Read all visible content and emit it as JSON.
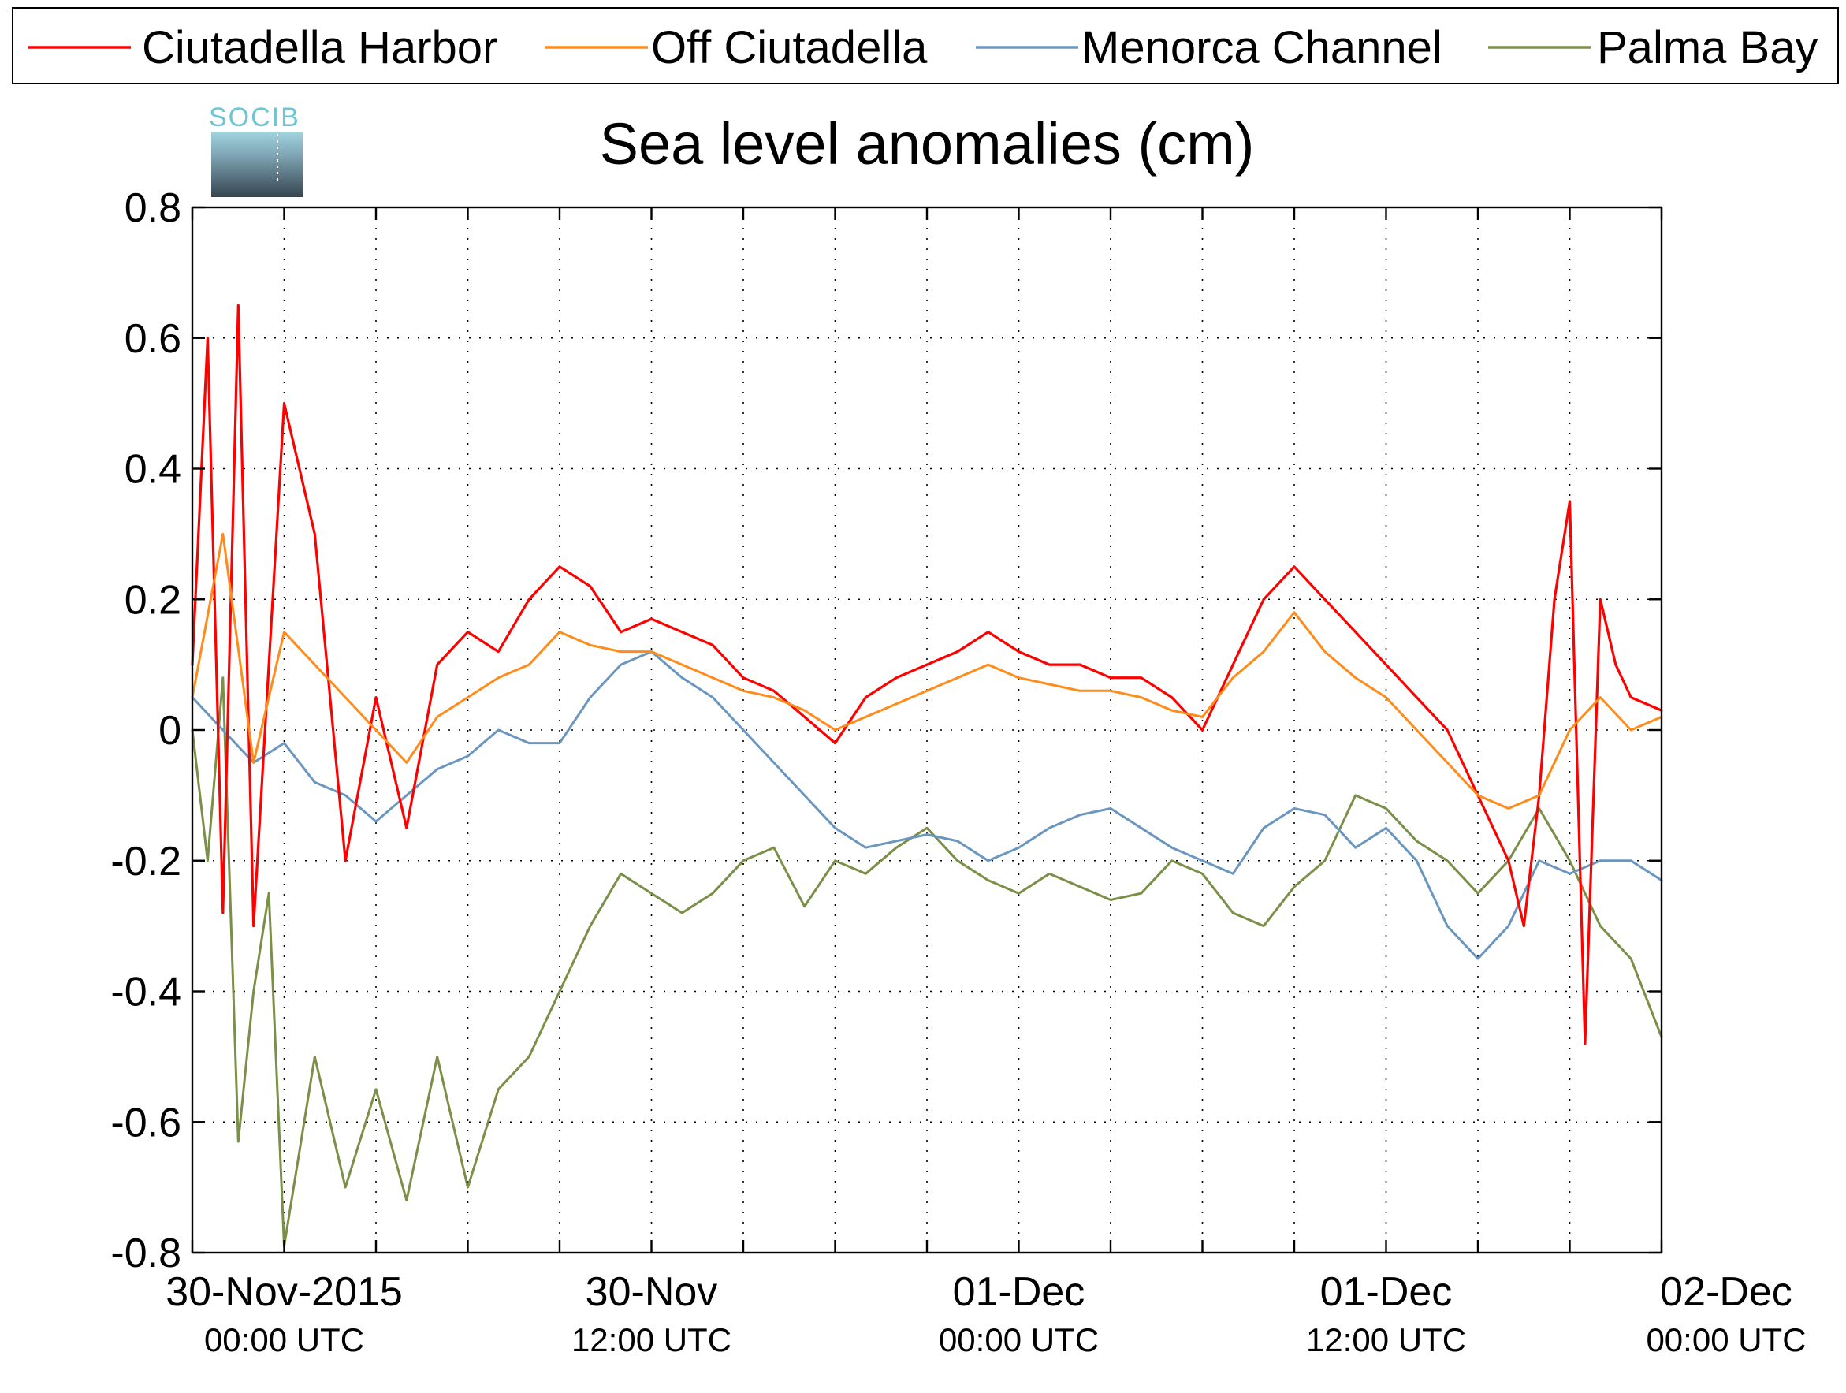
{
  "chart_data": {
    "type": "line",
    "title": "Sea level anomalies (cm)",
    "logo_text": "SOCIB",
    "xlabel": "",
    "ylabel": "",
    "ylim": [
      -0.8,
      0.8
    ],
    "yticks": [
      "0.8",
      "0.6",
      "0.4",
      "0.2",
      "0",
      "-0.2",
      "-0.4",
      "-0.6",
      "-0.8"
    ],
    "xlim_hours": [
      -3,
      45
    ],
    "grid": true,
    "legend_placement": "top",
    "xticks": [
      {
        "hour": 0,
        "main": "30-Nov-2015",
        "sub": "00:00 UTC"
      },
      {
        "hour": 12,
        "main": "30-Nov",
        "sub": "12:00 UTC"
      },
      {
        "hour": 24,
        "main": "01-Dec",
        "sub": "00:00 UTC"
      },
      {
        "hour": 36,
        "main": "01-Dec",
        "sub": "12:00 UTC"
      },
      {
        "hour": 48,
        "main": "02-Dec",
        "sub": "00:00 UTC"
      }
    ],
    "series": [
      {
        "name": "Ciutadella Harbor",
        "color": "#ff0000",
        "x": [
          -3,
          -2.5,
          -2,
          -1.5,
          -1,
          0,
          1,
          2,
          3,
          4,
          5,
          6,
          7,
          8,
          9,
          10,
          11,
          12,
          13,
          14,
          15,
          16,
          17,
          18,
          19,
          20,
          21,
          22,
          23,
          24,
          25,
          26,
          27,
          28,
          29,
          30,
          31,
          32,
          33,
          34,
          35,
          36,
          37,
          38,
          39,
          40,
          40.5,
          41,
          41.5,
          42,
          42.5,
          43,
          43.5,
          44,
          45
        ],
        "y": [
          0.1,
          0.6,
          -0.28,
          0.65,
          -0.3,
          0.5,
          0.3,
          -0.2,
          0.05,
          -0.15,
          0.1,
          0.15,
          0.12,
          0.2,
          0.25,
          0.22,
          0.15,
          0.17,
          0.15,
          0.13,
          0.08,
          0.06,
          0.02,
          -0.02,
          0.05,
          0.08,
          0.1,
          0.12,
          0.15,
          0.12,
          0.1,
          0.1,
          0.08,
          0.08,
          0.05,
          0.0,
          0.1,
          0.2,
          0.25,
          0.2,
          0.15,
          0.1,
          0.05,
          0.0,
          -0.1,
          -0.2,
          -0.3,
          -0.1,
          0.2,
          0.35,
          -0.48,
          0.2,
          0.1,
          0.05,
          0.03
        ]
      },
      {
        "name": "Off Ciutadella",
        "color": "#ff8c1a",
        "x": [
          -3,
          -2,
          -1,
          0,
          1,
          2,
          3,
          4,
          5,
          6,
          7,
          8,
          9,
          10,
          11,
          12,
          13,
          14,
          15,
          16,
          17,
          18,
          19,
          20,
          21,
          22,
          23,
          24,
          25,
          26,
          27,
          28,
          29,
          30,
          31,
          32,
          33,
          34,
          35,
          36,
          37,
          38,
          39,
          40,
          41,
          42,
          43,
          44,
          45
        ],
        "y": [
          0.05,
          0.3,
          -0.05,
          0.15,
          0.1,
          0.05,
          0.0,
          -0.05,
          0.02,
          0.05,
          0.08,
          0.1,
          0.15,
          0.13,
          0.12,
          0.12,
          0.1,
          0.08,
          0.06,
          0.05,
          0.03,
          0.0,
          0.02,
          0.04,
          0.06,
          0.08,
          0.1,
          0.08,
          0.07,
          0.06,
          0.06,
          0.05,
          0.03,
          0.02,
          0.08,
          0.12,
          0.18,
          0.12,
          0.08,
          0.05,
          0.0,
          -0.05,
          -0.1,
          -0.12,
          -0.1,
          0.0,
          0.05,
          0.0,
          0.02
        ]
      },
      {
        "name": "Menorca Channel",
        "color": "#6a96c0",
        "x": [
          -3,
          -2,
          -1,
          0,
          1,
          2,
          3,
          4,
          5,
          6,
          7,
          8,
          9,
          10,
          11,
          12,
          13,
          14,
          15,
          16,
          17,
          18,
          19,
          20,
          21,
          22,
          23,
          24,
          25,
          26,
          27,
          28,
          29,
          30,
          31,
          32,
          33,
          34,
          35,
          36,
          37,
          38,
          39,
          40,
          41,
          42,
          43,
          44,
          45
        ],
        "y": [
          0.05,
          0.0,
          -0.05,
          -0.02,
          -0.08,
          -0.1,
          -0.14,
          -0.1,
          -0.06,
          -0.04,
          0.0,
          -0.02,
          -0.02,
          0.05,
          0.1,
          0.12,
          0.08,
          0.05,
          0.0,
          -0.05,
          -0.1,
          -0.15,
          -0.18,
          -0.17,
          -0.16,
          -0.17,
          -0.2,
          -0.18,
          -0.15,
          -0.13,
          -0.12,
          -0.15,
          -0.18,
          -0.2,
          -0.22,
          -0.15,
          -0.12,
          -0.13,
          -0.18,
          -0.15,
          -0.2,
          -0.3,
          -0.35,
          -0.3,
          -0.2,
          -0.22,
          -0.2,
          -0.2,
          -0.23
        ]
      },
      {
        "name": "Palma Bay",
        "color": "#7a8f47",
        "x": [
          -3,
          -2.5,
          -2,
          -1.5,
          -1,
          -0.5,
          0,
          1,
          2,
          3,
          4,
          5,
          6,
          7,
          8,
          9,
          10,
          11,
          12,
          13,
          14,
          15,
          16,
          17,
          18,
          19,
          20,
          21,
          22,
          23,
          24,
          25,
          26,
          27,
          28,
          29,
          30,
          31,
          32,
          33,
          34,
          35,
          36,
          37,
          38,
          39,
          40,
          41,
          42,
          43,
          44,
          45
        ],
        "y": [
          0.0,
          -0.2,
          0.08,
          -0.63,
          -0.4,
          -0.25,
          -0.79,
          -0.5,
          -0.7,
          -0.55,
          -0.72,
          -0.5,
          -0.7,
          -0.55,
          -0.5,
          -0.4,
          -0.3,
          -0.22,
          -0.25,
          -0.28,
          -0.25,
          -0.2,
          -0.18,
          -0.27,
          -0.2,
          -0.22,
          -0.18,
          -0.15,
          -0.2,
          -0.23,
          -0.25,
          -0.22,
          -0.24,
          -0.26,
          -0.25,
          -0.2,
          -0.22,
          -0.28,
          -0.3,
          -0.24,
          -0.2,
          -0.1,
          -0.12,
          -0.17,
          -0.2,
          -0.25,
          -0.2,
          -0.12,
          -0.2,
          -0.3,
          -0.35,
          -0.47
        ]
      }
    ]
  }
}
